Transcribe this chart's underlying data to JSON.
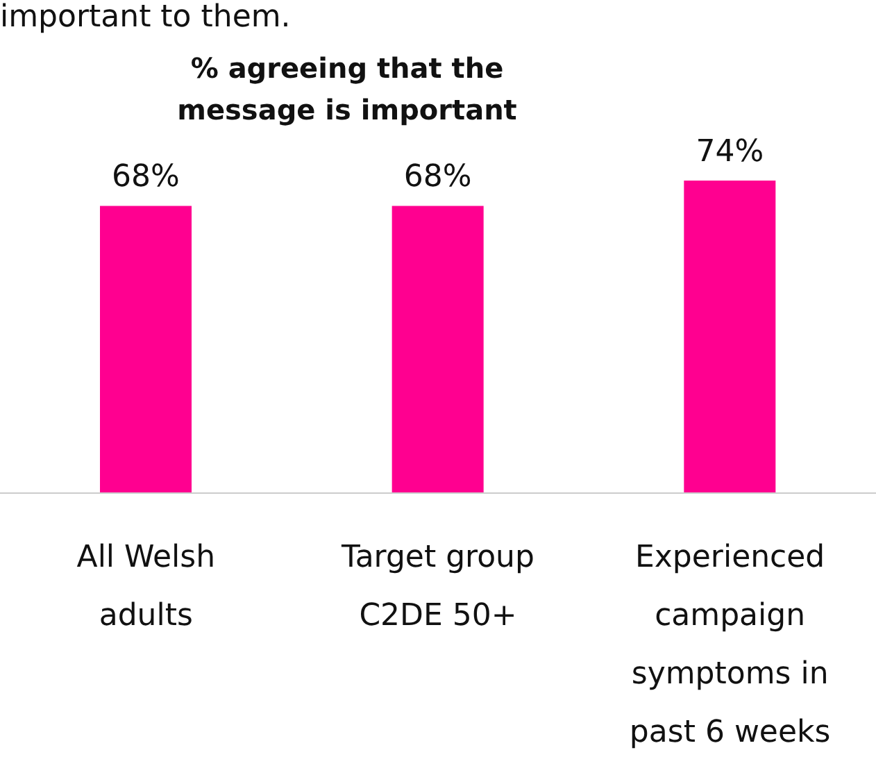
{
  "chart_data": {
    "type": "bar",
    "title": "% agreeing that the message is important",
    "annotations": [
      "important to them."
    ],
    "categories": [
      "All Welsh adults",
      "Target group C2DE 50+",
      "Experienced campaign symptoms in past 6 weeks"
    ],
    "values": [
      68,
      68,
      74
    ],
    "value_labels": [
      "68%",
      "68%",
      "74%"
    ],
    "color": "#ff0090",
    "tick_labels": "x",
    "grid": false,
    "legend": false
  }
}
